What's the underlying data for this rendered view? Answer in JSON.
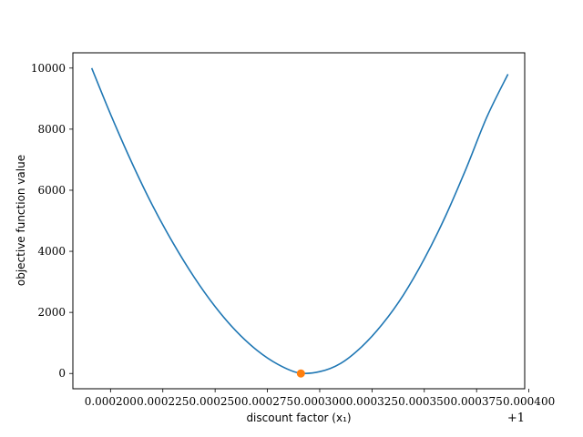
{
  "chart_data": {
    "type": "line",
    "xlabel": "discount factor (x₁)",
    "ylabel": "objective function value",
    "x_offset_label": "+1",
    "xlim": [
      0.000182,
      0.000398
    ],
    "ylim": [
      -500,
      10500
    ],
    "xticks": [
      0.0002,
      0.000225,
      0.00025,
      0.000275,
      0.0003,
      0.000325,
      0.00035,
      0.000375,
      0.0004
    ],
    "xtick_labels": [
      "0.000200",
      "0.000225",
      "0.000250",
      "0.000275",
      "0.000300",
      "0.000325",
      "0.000350",
      "0.000375",
      "0.000400"
    ],
    "yticks": [
      0,
      2000,
      4000,
      6000,
      8000,
      10000
    ],
    "ytick_labels": [
      "0",
      "2000",
      "4000",
      "6000",
      "8000",
      "10000"
    ],
    "grid": false,
    "series": [
      {
        "color": "#1f77b4",
        "x": [
          0.000191,
          0.0002,
          0.00021,
          0.00022,
          0.00023,
          0.00024,
          0.00025,
          0.00026,
          0.00027,
          0.00028,
          0.00029,
          0.0003,
          0.00031,
          0.00032,
          0.00033,
          0.00034,
          0.00035,
          0.00036,
          0.00037,
          0.00038,
          0.00039
        ],
        "y": [
          10000,
          8490,
          6930,
          5510,
          4260,
          3150,
          2190,
          1390,
          760,
          300,
          20,
          60,
          330,
          870,
          1620,
          2570,
          3750,
          5130,
          6710,
          8410,
          9800
        ]
      },
      {
        "type": "scatter",
        "color": "#ff7f0e",
        "x": [
          0.000291
        ],
        "y": [
          0
        ]
      }
    ]
  }
}
